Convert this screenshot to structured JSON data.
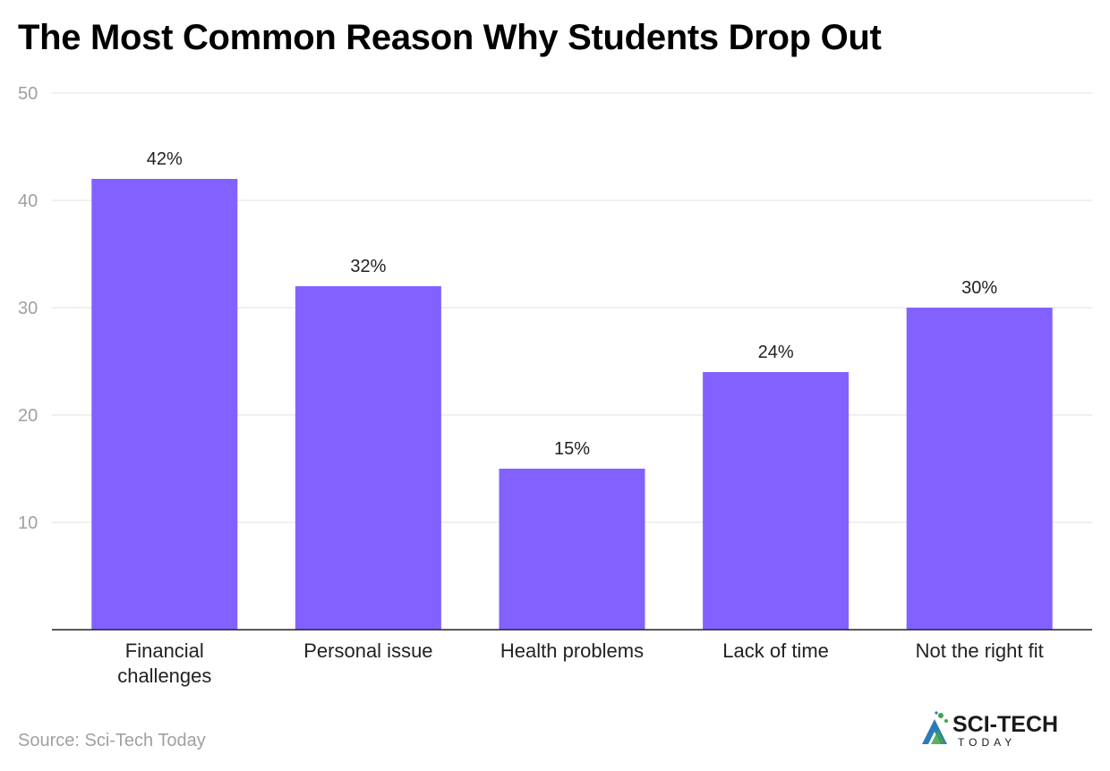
{
  "title": "The Most Common Reason Why Students Drop Out",
  "source": "Source: Sci-Tech Today",
  "logo": {
    "line1": "SCI-TECH",
    "line2": "TODAY"
  },
  "colors": {
    "bar": "#8361ff",
    "grid": "#e0e0e0",
    "axis": "#222222",
    "tick_text": "#a0a0a0",
    "label_text": "#222222",
    "logo_dark": "#1a1a1a",
    "logo_green": "#3fa34d",
    "logo_blue": "#2c7bb6"
  },
  "chart_data": {
    "type": "bar",
    "categories": [
      [
        "Financial",
        "challenges"
      ],
      [
        "Personal issue"
      ],
      [
        "Health problems"
      ],
      [
        "Lack of time"
      ],
      [
        "Not the right fit"
      ]
    ],
    "values": [
      42,
      32,
      15,
      24,
      30
    ],
    "data_labels": [
      "42%",
      "32%",
      "15%",
      "24%",
      "30%"
    ],
    "ylim": [
      0,
      50
    ],
    "yticks": [
      10,
      20,
      30,
      40,
      50
    ],
    "grid": true
  }
}
